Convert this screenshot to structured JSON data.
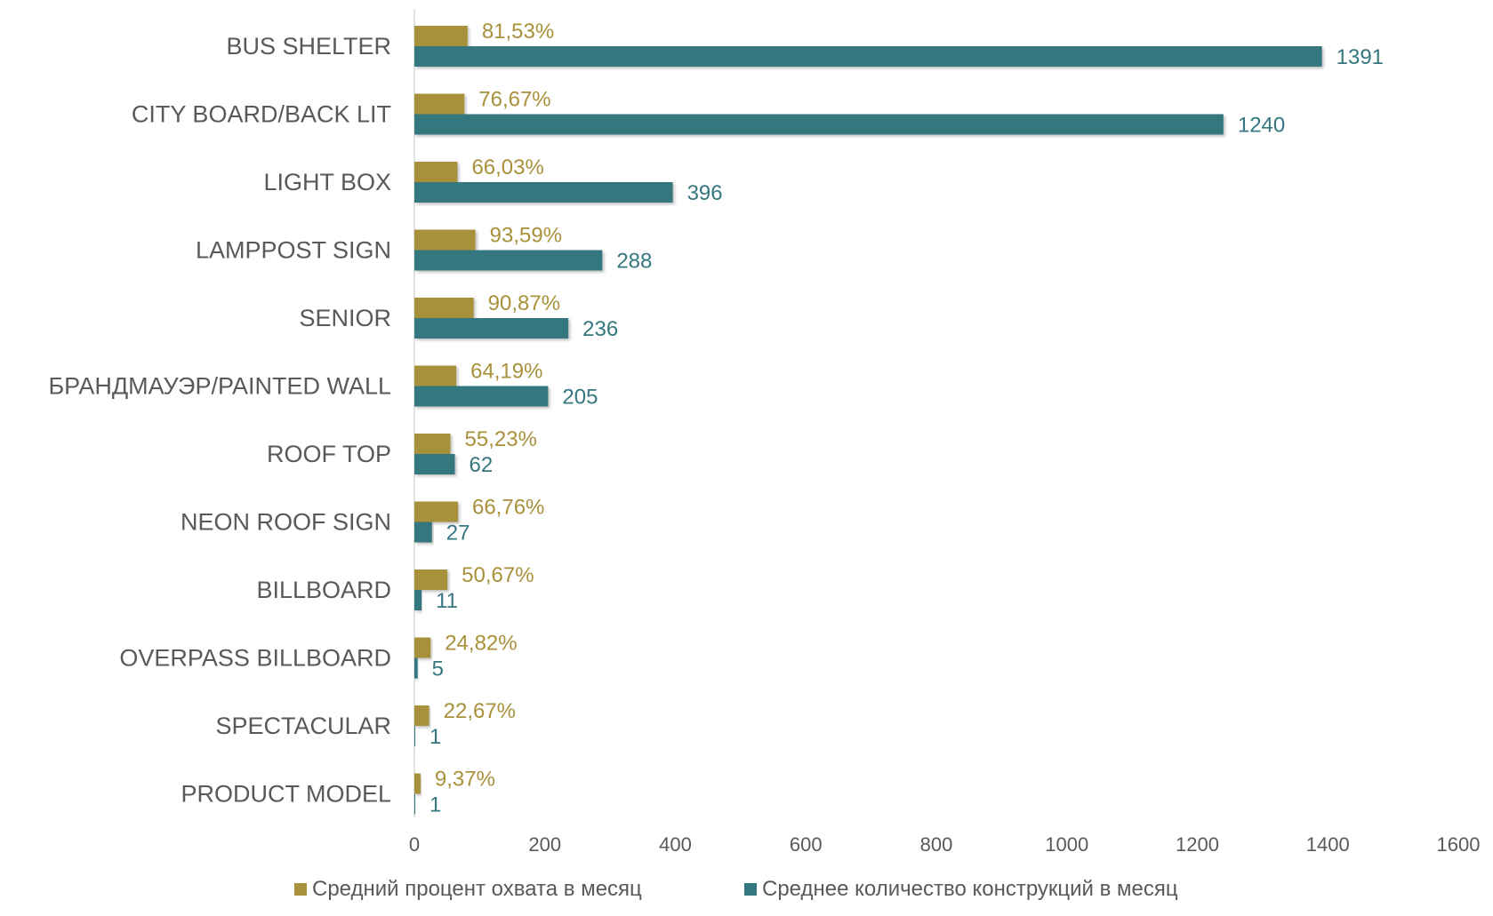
{
  "chart_data": {
    "type": "bar",
    "orientation": "horizontal",
    "categories": [
      "BUS SHELTER",
      "CITY BOARD/BACK LIT",
      "LIGHT BOX",
      "LAMPPOST SIGN",
      "SENIOR",
      "БРАНДМАУЭР/PAINTED WALL",
      "ROOF TOP",
      "NEON ROOF SIGN",
      "BILLBOARD",
      "OVERPASS BILLBOARD",
      "SPECTACULAR",
      "PRODUCT MODEL"
    ],
    "series": [
      {
        "name": "Средний процент охвата в месяц",
        "color": "#A8913A",
        "values": [
          81.53,
          76.67,
          66.03,
          93.59,
          90.87,
          64.19,
          55.23,
          66.76,
          50.67,
          24.82,
          22.67,
          9.37
        ],
        "labels": [
          "81,53%",
          "76,67%",
          "66,03%",
          "93,59%",
          "90,87%",
          "64,19%",
          "55,23%",
          "66,76%",
          "50,67%",
          "24,82%",
          "22,67%",
          "9,37%"
        ]
      },
      {
        "name": "Среднее количество конструкций в месяц",
        "color": "#35777F",
        "values": [
          1391,
          1240,
          396,
          288,
          236,
          205,
          62,
          27,
          11,
          5,
          1,
          1
        ],
        "labels": [
          "1391",
          "1240",
          "396",
          "288",
          "236",
          "205",
          "62",
          "27",
          "11",
          "5",
          "1",
          "1"
        ]
      }
    ],
    "xlim": [
      0,
      1600
    ],
    "xticks": [
      "0",
      "200",
      "400",
      "600",
      "800",
      "1000",
      "1200",
      "1400",
      "1600"
    ],
    "grid": false,
    "legend": "bottom",
    "title": "",
    "xlabel": "",
    "ylabel": ""
  }
}
